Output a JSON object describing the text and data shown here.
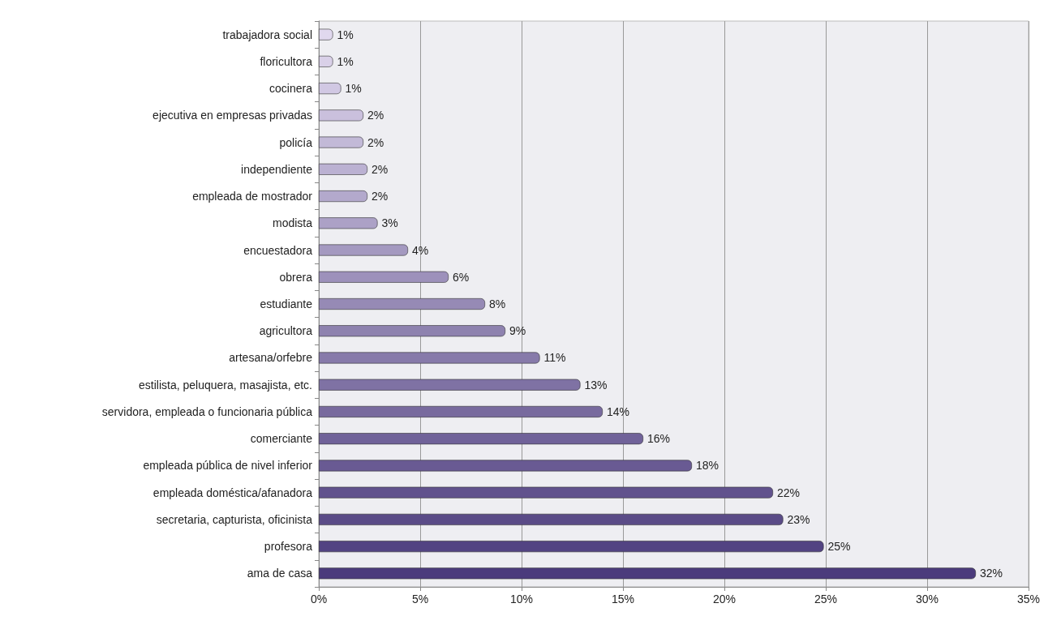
{
  "chart_data": {
    "type": "bar",
    "orientation": "horizontal",
    "categories": [
      "trabajadora social",
      "floricultora",
      "cocinera",
      "ejecutiva en empresas privadas",
      "policía",
      "independiente",
      "empleada de mostrador",
      "modista",
      "encuestadora",
      "obrera",
      "estudiante",
      "agricultora",
      "artesana/orfebre",
      "estilista, peluquera, masajista, etc.",
      "servidora, empleada o funcionaria pública",
      "comerciante",
      "empleada pública de nivel inferior",
      "empleada doméstica/afanadora",
      "secretaria, capturista, oficinista",
      "profesora",
      "ama de casa"
    ],
    "values": [
      0.7,
      0.7,
      1.1,
      2.2,
      2.2,
      2.4,
      2.4,
      2.9,
      4.4,
      6.4,
      8.2,
      9.2,
      10.9,
      12.9,
      14.0,
      16.0,
      18.4,
      22.4,
      22.9,
      24.9,
      32.4
    ],
    "value_labels": [
      "1%",
      "1%",
      "1%",
      "2%",
      "2%",
      "2%",
      "2%",
      "3%",
      "4%",
      "6%",
      "8%",
      "9%",
      "11%",
      "13%",
      "14%",
      "16%",
      "18%",
      "22%",
      "23%",
      "25%",
      "32%"
    ],
    "colors": [
      "#e0d8ee",
      "#d9d0e8",
      "#d1c8e3",
      "#cac0dd",
      "#c2b9d7",
      "#bbb1d2",
      "#b3a9cc",
      "#aca1c6",
      "#a499c0",
      "#9d91bb",
      "#968ab5",
      "#8e82af",
      "#877aaa",
      "#7f72a4",
      "#786a9e",
      "#706299",
      "#695a93",
      "#61528d",
      "#5a4b87",
      "#524382",
      "#4b3b7c"
    ],
    "xlim": [
      0,
      35
    ],
    "xticks": [
      {
        "value": 0,
        "label": "0%"
      },
      {
        "value": 5,
        "label": "5%"
      },
      {
        "value": 10,
        "label": "10%"
      },
      {
        "value": 15,
        "label": "15%"
      },
      {
        "value": 20,
        "label": "20%"
      },
      {
        "value": 25,
        "label": "25%"
      },
      {
        "value": 30,
        "label": "30%"
      },
      {
        "value": 35,
        "label": "35%"
      }
    ],
    "grid": "x"
  }
}
